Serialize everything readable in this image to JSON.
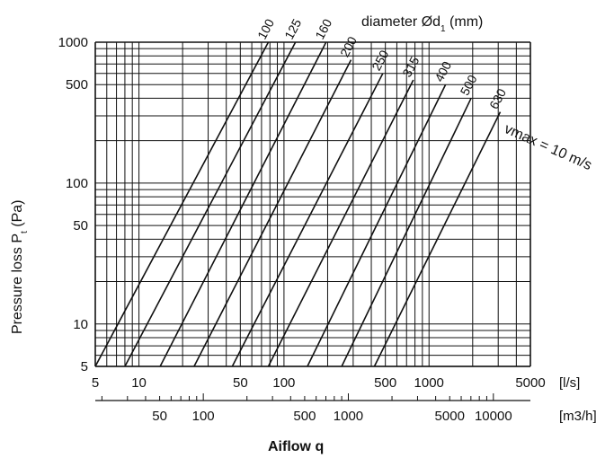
{
  "chart_data": {
    "type": "line",
    "title": "diameter Ød1 (mm)",
    "xlabel": "Aiflow q",
    "ylabel": "Pressure loss Pt (Pa)",
    "x_scale": "log",
    "y_scale": "log",
    "xlim": [
      5,
      5000
    ],
    "ylim": [
      5,
      1000
    ],
    "x_unit_primary": "[l/s]",
    "x_unit_secondary": "[m3/h]",
    "x_ticks_primary": [
      "5",
      "10",
      "50",
      "100",
      "500",
      "1000",
      "5000"
    ],
    "x_ticks_secondary": [
      "50",
      "100",
      "500",
      "1000",
      "5000",
      "10000"
    ],
    "y_ticks": [
      "5",
      "10",
      "50",
      "100",
      "500",
      "1000"
    ],
    "vmax_label": "vmax = 10 m/s",
    "series": [
      {
        "name": "100",
        "x": [
          5,
          78
        ],
        "y": [
          5,
          1000
        ]
      },
      {
        "name": "125",
        "x": [
          8,
          120
        ],
        "y": [
          5,
          1000
        ]
      },
      {
        "name": "160",
        "x": [
          14,
          195
        ],
        "y": [
          5,
          1000
        ]
      },
      {
        "name": "200",
        "x": [
          24,
          290
        ],
        "y": [
          5,
          750
        ]
      },
      {
        "name": "250",
        "x": [
          44,
          480
        ],
        "y": [
          5,
          600
        ]
      },
      {
        "name": "315",
        "x": [
          78,
          780
        ],
        "y": [
          5,
          540
        ]
      },
      {
        "name": "400",
        "x": [
          145,
          1300
        ],
        "y": [
          5,
          500
        ]
      },
      {
        "name": "500",
        "x": [
          250,
          1950
        ],
        "y": [
          5,
          400
        ]
      },
      {
        "name": "630",
        "x": [
          420,
          3100
        ],
        "y": [
          5,
          320
        ]
      }
    ]
  }
}
